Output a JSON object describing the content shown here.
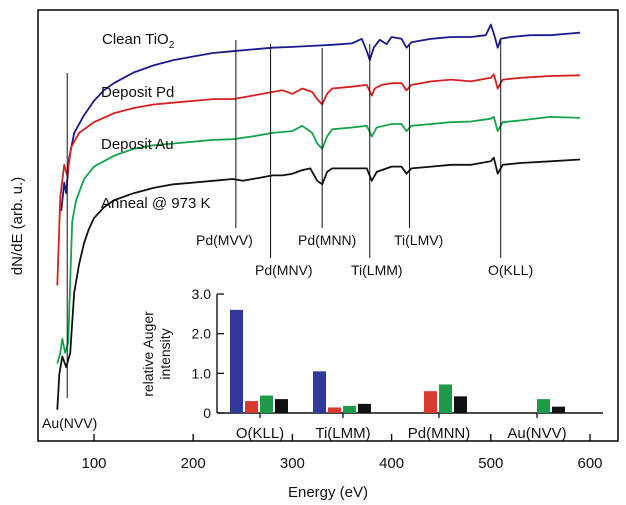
{
  "colors": {
    "clean": "#1a1a8c",
    "pd": "#d62020",
    "au": "#16a34a",
    "anneal": "#111111",
    "bar_clean": "#303a9a",
    "bar_pd": "#d93a30",
    "bar_au": "#1f9a4a",
    "bar_anneal": "#111111"
  },
  "chart_data": [
    {
      "type": "line",
      "xlabel": "Energy (eV)",
      "ylabel": "dN/dE (arb. u.)",
      "xlim": [
        60,
        600
      ],
      "x_ticks": [
        "100",
        "200",
        "300",
        "400",
        "500",
        "600"
      ],
      "grid": false,
      "series": [
        {
          "name": "Clean TiO2",
          "name_main": "Clean TiO",
          "name_sub": "2",
          "color_key": "clean",
          "points": [
            [
              67,
              1.1
            ],
            [
              70,
              1.9
            ],
            [
              72,
              1.6
            ],
            [
              75,
              2.6
            ],
            [
              80,
              3.3
            ],
            [
              90,
              3.8
            ],
            [
              100,
              4.2
            ],
            [
              110,
              4.5
            ],
            [
              120,
              4.7
            ],
            [
              140,
              5.0
            ],
            [
              160,
              5.2
            ],
            [
              180,
              5.35
            ],
            [
              200,
              5.45
            ],
            [
              220,
              5.55
            ],
            [
              240,
              5.6
            ],
            [
              260,
              5.65
            ],
            [
              280,
              5.7
            ],
            [
              300,
              5.72
            ],
            [
              320,
              5.75
            ],
            [
              340,
              5.78
            ],
            [
              360,
              5.82
            ],
            [
              370,
              5.95
            ],
            [
              375,
              5.6
            ],
            [
              378,
              5.35
            ],
            [
              382,
              5.7
            ],
            [
              388,
              5.92
            ],
            [
              395,
              5.8
            ],
            [
              400,
              6.0
            ],
            [
              410,
              5.95
            ],
            [
              415,
              5.7
            ],
            [
              420,
              5.85
            ],
            [
              440,
              5.95
            ],
            [
              460,
              6.0
            ],
            [
              480,
              6.0
            ],
            [
              495,
              6.05
            ],
            [
              500,
              6.35
            ],
            [
              503,
              6.1
            ],
            [
              507,
              5.7
            ],
            [
              510,
              5.95
            ],
            [
              520,
              6.0
            ],
            [
              540,
              6.05
            ],
            [
              560,
              6.05
            ],
            [
              580,
              6.1
            ],
            [
              590,
              6.12
            ]
          ]
        },
        {
          "name": "Deposit Pd",
          "color_key": "pd",
          "points": [
            [
              63,
              -1.0
            ],
            [
              66,
              1.5
            ],
            [
              70,
              2.4
            ],
            [
              73,
              2.1
            ],
            [
              77,
              2.9
            ],
            [
              85,
              3.3
            ],
            [
              100,
              3.6
            ],
            [
              120,
              3.85
            ],
            [
              140,
              4.0
            ],
            [
              160,
              4.1
            ],
            [
              180,
              4.15
            ],
            [
              200,
              4.2
            ],
            [
              220,
              4.25
            ],
            [
              240,
              4.25
            ],
            [
              260,
              4.35
            ],
            [
              270,
              4.4
            ],
            [
              280,
              4.45
            ],
            [
              290,
              4.5
            ],
            [
              300,
              4.4
            ],
            [
              310,
              4.55
            ],
            [
              320,
              4.45
            ],
            [
              325,
              4.25
            ],
            [
              330,
              4.1
            ],
            [
              335,
              4.4
            ],
            [
              340,
              4.55
            ],
            [
              360,
              4.6
            ],
            [
              375,
              4.65
            ],
            [
              380,
              4.35
            ],
            [
              383,
              4.55
            ],
            [
              390,
              4.65
            ],
            [
              400,
              4.7
            ],
            [
              410,
              4.7
            ],
            [
              415,
              4.5
            ],
            [
              420,
              4.65
            ],
            [
              440,
              4.75
            ],
            [
              460,
              4.8
            ],
            [
              480,
              4.75
            ],
            [
              500,
              4.85
            ],
            [
              503,
              4.95
            ],
            [
              507,
              4.55
            ],
            [
              512,
              4.8
            ],
            [
              530,
              4.85
            ],
            [
              560,
              4.9
            ],
            [
              590,
              4.92
            ]
          ]
        },
        {
          "name": "Deposit Au",
          "color_key": "au",
          "points": [
            [
              63,
              -3.2
            ],
            [
              66,
              -2.9
            ],
            [
              68,
              -2.5
            ],
            [
              71,
              -2.9
            ],
            [
              74,
              -2.6
            ],
            [
              78,
              0.8
            ],
            [
              82,
              1.4
            ],
            [
              90,
              2.0
            ],
            [
              100,
              2.35
            ],
            [
              120,
              2.65
            ],
            [
              140,
              2.85
            ],
            [
              160,
              2.95
            ],
            [
              180,
              3.0
            ],
            [
              200,
              3.05
            ],
            [
              220,
              3.1
            ],
            [
              240,
              3.12
            ],
            [
              260,
              3.2
            ],
            [
              280,
              3.3
            ],
            [
              300,
              3.35
            ],
            [
              310,
              3.5
            ],
            [
              320,
              3.3
            ],
            [
              325,
              3.0
            ],
            [
              330,
              2.85
            ],
            [
              335,
              3.2
            ],
            [
              340,
              3.4
            ],
            [
              360,
              3.45
            ],
            [
              375,
              3.5
            ],
            [
              380,
              3.2
            ],
            [
              385,
              3.45
            ],
            [
              400,
              3.55
            ],
            [
              410,
              3.55
            ],
            [
              415,
              3.35
            ],
            [
              420,
              3.5
            ],
            [
              440,
              3.55
            ],
            [
              460,
              3.6
            ],
            [
              480,
              3.62
            ],
            [
              500,
              3.7
            ],
            [
              503,
              3.75
            ],
            [
              507,
              3.35
            ],
            [
              512,
              3.6
            ],
            [
              530,
              3.65
            ],
            [
              560,
              3.75
            ],
            [
              590,
              3.72
            ]
          ]
        },
        {
          "name": "Anneal @ 973 K",
          "color_key": "anneal",
          "points": [
            [
              63,
              -4.5
            ],
            [
              65,
              -3.5
            ],
            [
              68,
              -3.0
            ],
            [
              72,
              -3.3
            ],
            [
              76,
              -2.9
            ],
            [
              80,
              -1.2
            ],
            [
              85,
              -0.4
            ],
            [
              90,
              0.2
            ],
            [
              95,
              0.6
            ],
            [
              100,
              0.9
            ],
            [
              110,
              1.2
            ],
            [
              120,
              1.4
            ],
            [
              140,
              1.6
            ],
            [
              160,
              1.75
            ],
            [
              180,
              1.85
            ],
            [
              200,
              1.9
            ],
            [
              220,
              1.95
            ],
            [
              240,
              2.0
            ],
            [
              250,
              1.95
            ],
            [
              260,
              2.0
            ],
            [
              270,
              2.05
            ],
            [
              280,
              2.1
            ],
            [
              290,
              2.1
            ],
            [
              300,
              2.15
            ],
            [
              310,
              2.25
            ],
            [
              318,
              2.3
            ],
            [
              325,
              1.95
            ],
            [
              330,
              1.85
            ],
            [
              335,
              2.2
            ],
            [
              340,
              2.3
            ],
            [
              360,
              2.3
            ],
            [
              375,
              2.3
            ],
            [
              380,
              1.95
            ],
            [
              385,
              2.2
            ],
            [
              400,
              2.35
            ],
            [
              410,
              2.35
            ],
            [
              415,
              2.15
            ],
            [
              420,
              2.3
            ],
            [
              440,
              2.35
            ],
            [
              460,
              2.4
            ],
            [
              480,
              2.4
            ],
            [
              500,
              2.5
            ],
            [
              503,
              2.6
            ],
            [
              507,
              2.15
            ],
            [
              512,
              2.4
            ],
            [
              530,
              2.45
            ],
            [
              560,
              2.5
            ],
            [
              590,
              2.55
            ]
          ]
        }
      ],
      "annotations": [
        {
          "label": "Au(NVV)",
          "x": 73
        },
        {
          "label": "Pd(MVV)",
          "x": 243
        },
        {
          "label": "Pd(MNV)",
          "x": 278
        },
        {
          "label": "Pd(MNN)",
          "x": 330
        },
        {
          "label": "Ti(LMM)",
          "x": 378
        },
        {
          "label": "Ti(LMV)",
          "x": 418
        },
        {
          "label": "O(KLL)",
          "x": 510
        }
      ]
    },
    {
      "type": "bar",
      "ylabel_lines": [
        "relative Auger",
        "intensity"
      ],
      "ylim": [
        0,
        3.0
      ],
      "y_ticks": [
        "0",
        "1.0",
        "2.0",
        "3.0"
      ],
      "categories": [
        "O(KLL)",
        "Ti(LMM)",
        "Pd(MNN)",
        "Au(NVV)"
      ],
      "series": [
        {
          "color_key": "bar_clean",
          "values": [
            2.6,
            1.05,
            0,
            0
          ]
        },
        {
          "color_key": "bar_pd",
          "values": [
            0.3,
            0.14,
            0.55,
            0
          ]
        },
        {
          "color_key": "bar_au",
          "values": [
            0.44,
            0.18,
            0.72,
            0.35
          ]
        },
        {
          "color_key": "bar_anneal",
          "values": [
            0.35,
            0.23,
            0.42,
            0.16
          ]
        }
      ]
    }
  ]
}
